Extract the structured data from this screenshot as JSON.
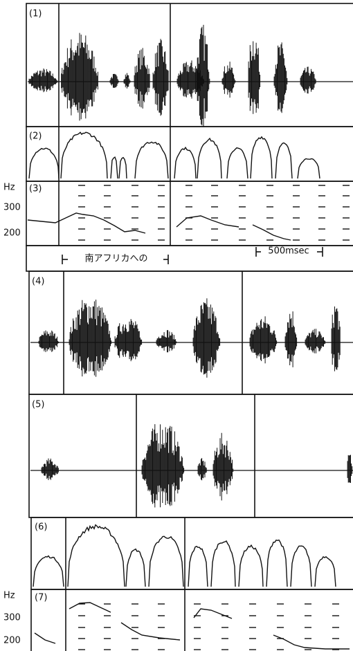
{
  "panels": [
    {
      "label": "(1)"
    },
    {
      "label": "(2)"
    },
    {
      "label": "(3)",
      "unit": "Hz",
      "ticks": [
        "300",
        "200"
      ]
    },
    {
      "label": "(4)"
    },
    {
      "label": "(5)"
    },
    {
      "label": "(6)"
    },
    {
      "label": "(7)",
      "unit": "Hz",
      "ticks": [
        "300",
        "200"
      ]
    }
  ],
  "captions": {
    "phrase": "南アフリカへの",
    "scale": "500msec"
  }
}
